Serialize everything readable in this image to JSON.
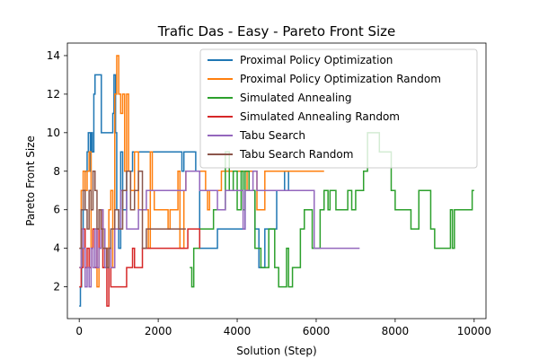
{
  "chart_data": {
    "type": "line",
    "title": "Trafic Das - Easy - Pareto Front Size",
    "xlabel": "Solution (Step)",
    "ylabel": "Pareto Front Size",
    "xlim": [
      -300,
      10300
    ],
    "ylim": [
      0.35,
      14.65
    ],
    "xticks": [
      0,
      2000,
      4000,
      6000,
      8000,
      10000
    ],
    "yticks": [
      2,
      4,
      6,
      8,
      10,
      12,
      14
    ],
    "grid": false,
    "legend_position": "top-right",
    "series": [
      {
        "name": "Proximal Policy Optimization",
        "color": "#1f77b4",
        "points": [
          [
            0,
            1
          ],
          [
            30,
            2
          ],
          [
            60,
            4
          ],
          [
            100,
            6
          ],
          [
            150,
            8
          ],
          [
            200,
            9
          ],
          [
            230,
            10
          ],
          [
            280,
            8
          ],
          [
            300,
            10
          ],
          [
            330,
            9
          ],
          [
            370,
            12
          ],
          [
            400,
            13
          ],
          [
            560,
            10
          ],
          [
            850,
            11
          ],
          [
            880,
            13
          ],
          [
            920,
            10
          ],
          [
            950,
            6
          ],
          [
            1000,
            4
          ],
          [
            1050,
            9
          ],
          [
            1100,
            6
          ],
          [
            1200,
            8
          ],
          [
            1350,
            9
          ],
          [
            2600,
            8
          ],
          [
            2650,
            9
          ],
          [
            2950,
            8
          ],
          [
            3050,
            4
          ],
          [
            3500,
            5
          ],
          [
            4200,
            7
          ],
          [
            4450,
            5
          ],
          [
            4550,
            3
          ],
          [
            4700,
            5
          ],
          [
            5000,
            7
          ],
          [
            5200,
            8
          ],
          [
            5300,
            7
          ]
        ]
      },
      {
        "name": "Proximal Policy Optimization Random",
        "color": "#ff7f0e",
        "points": [
          [
            0,
            3
          ],
          [
            50,
            7
          ],
          [
            100,
            8
          ],
          [
            150,
            7
          ],
          [
            200,
            8
          ],
          [
            250,
            9
          ],
          [
            300,
            4
          ],
          [
            350,
            5
          ],
          [
            400,
            3
          ],
          [
            450,
            2
          ],
          [
            500,
            4
          ],
          [
            550,
            6
          ],
          [
            600,
            3
          ],
          [
            700,
            4
          ],
          [
            750,
            6
          ],
          [
            800,
            7
          ],
          [
            850,
            3
          ],
          [
            900,
            12
          ],
          [
            950,
            14
          ],
          [
            1000,
            12
          ],
          [
            1050,
            11
          ],
          [
            1100,
            12
          ],
          [
            1150,
            8
          ],
          [
            1200,
            12
          ],
          [
            1250,
            8
          ],
          [
            1300,
            7
          ],
          [
            1400,
            9
          ],
          [
            1500,
            6
          ],
          [
            1750,
            4
          ],
          [
            1800,
            9
          ],
          [
            1850,
            7
          ],
          [
            1900,
            6
          ],
          [
            2250,
            5
          ],
          [
            2300,
            6
          ],
          [
            2500,
            8
          ],
          [
            2550,
            4
          ],
          [
            2650,
            7
          ],
          [
            2700,
            8
          ],
          [
            3200,
            7
          ],
          [
            3250,
            6
          ],
          [
            3300,
            7
          ],
          [
            3600,
            8
          ],
          [
            4250,
            7
          ],
          [
            4300,
            8
          ],
          [
            4500,
            6
          ],
          [
            4700,
            8
          ],
          [
            6200,
            8
          ]
        ]
      },
      {
        "name": "Simulated Annealing",
        "color": "#2ca02c",
        "points": [
          [
            2800,
            3
          ],
          [
            2850,
            2
          ],
          [
            2900,
            4
          ],
          [
            3000,
            4
          ],
          [
            3050,
            5
          ],
          [
            3400,
            6
          ],
          [
            3700,
            9
          ],
          [
            3800,
            7
          ],
          [
            3900,
            8
          ],
          [
            4000,
            6
          ],
          [
            4100,
            8
          ],
          [
            4150,
            6
          ],
          [
            4200,
            8
          ],
          [
            4300,
            7
          ],
          [
            4450,
            4
          ],
          [
            4600,
            3
          ],
          [
            4800,
            5
          ],
          [
            4950,
            3
          ],
          [
            5050,
            2
          ],
          [
            5250,
            4
          ],
          [
            5300,
            2
          ],
          [
            5400,
            3
          ],
          [
            5600,
            5
          ],
          [
            5700,
            6
          ],
          [
            5800,
            6
          ],
          [
            5900,
            4
          ],
          [
            6100,
            6
          ],
          [
            6200,
            7
          ],
          [
            6300,
            6
          ],
          [
            6350,
            7
          ],
          [
            6500,
            6
          ],
          [
            6800,
            7
          ],
          [
            6900,
            6
          ],
          [
            7000,
            7
          ],
          [
            7200,
            8
          ],
          [
            7300,
            10
          ],
          [
            7600,
            9
          ],
          [
            7900,
            7
          ],
          [
            8000,
            6
          ],
          [
            8200,
            6
          ],
          [
            8400,
            5
          ],
          [
            8600,
            7
          ],
          [
            8900,
            5
          ],
          [
            9000,
            4
          ],
          [
            9400,
            6
          ],
          [
            9450,
            4
          ],
          [
            9500,
            6
          ],
          [
            9700,
            6
          ],
          [
            9950,
            7
          ],
          [
            10000,
            7
          ]
        ]
      },
      {
        "name": "Simulated Annealing Random",
        "color": "#d62728",
        "points": [
          [
            0,
            2
          ],
          [
            50,
            3
          ],
          [
            100,
            5
          ],
          [
            150,
            3
          ],
          [
            200,
            4
          ],
          [
            250,
            3
          ],
          [
            300,
            4
          ],
          [
            350,
            5
          ],
          [
            400,
            3
          ],
          [
            450,
            5
          ],
          [
            500,
            4
          ],
          [
            550,
            6
          ],
          [
            600,
            3
          ],
          [
            650,
            4
          ],
          [
            700,
            1
          ],
          [
            750,
            4
          ],
          [
            800,
            2
          ],
          [
            1200,
            3
          ],
          [
            1300,
            3
          ],
          [
            1350,
            4
          ],
          [
            1400,
            3
          ],
          [
            1600,
            4
          ],
          [
            2000,
            4
          ],
          [
            2500,
            4
          ],
          [
            2700,
            4
          ],
          [
            2750,
            5
          ],
          [
            3000,
            5
          ],
          [
            3050,
            4
          ]
        ]
      },
      {
        "name": "Tabu Search",
        "color": "#9467bd",
        "points": [
          [
            0,
            3
          ],
          [
            50,
            5
          ],
          [
            100,
            4
          ],
          [
            150,
            2
          ],
          [
            200,
            3
          ],
          [
            250,
            2
          ],
          [
            300,
            4
          ],
          [
            350,
            3
          ],
          [
            400,
            5
          ],
          [
            450,
            3
          ],
          [
            500,
            4
          ],
          [
            550,
            6
          ],
          [
            600,
            5
          ],
          [
            650,
            3
          ],
          [
            750,
            4
          ],
          [
            800,
            3
          ],
          [
            900,
            5
          ],
          [
            1000,
            5
          ],
          [
            1050,
            7
          ],
          [
            1100,
            7
          ],
          [
            1200,
            5
          ],
          [
            1400,
            5
          ],
          [
            1500,
            6
          ],
          [
            1600,
            6
          ],
          [
            1700,
            7
          ],
          [
            2000,
            7
          ],
          [
            2500,
            7
          ],
          [
            2700,
            8
          ],
          [
            3050,
            7
          ],
          [
            3500,
            6
          ],
          [
            3700,
            7
          ],
          [
            4100,
            7
          ],
          [
            4150,
            5
          ],
          [
            4200,
            7
          ],
          [
            4400,
            8
          ],
          [
            4500,
            7
          ],
          [
            5000,
            7
          ],
          [
            5500,
            7
          ],
          [
            5800,
            7
          ],
          [
            5950,
            4
          ],
          [
            6500,
            4
          ],
          [
            7100,
            4
          ]
        ]
      },
      {
        "name": "Tabu Search Random",
        "color": "#8c564b",
        "points": [
          [
            0,
            4
          ],
          [
            50,
            6
          ],
          [
            100,
            7
          ],
          [
            150,
            6
          ],
          [
            200,
            5
          ],
          [
            250,
            7
          ],
          [
            300,
            6
          ],
          [
            350,
            8
          ],
          [
            400,
            7
          ],
          [
            450,
            5
          ],
          [
            500,
            6
          ],
          [
            550,
            5
          ],
          [
            600,
            4
          ],
          [
            700,
            3
          ],
          [
            750,
            4
          ],
          [
            800,
            5
          ],
          [
            900,
            6
          ],
          [
            1000,
            5
          ],
          [
            1100,
            7
          ],
          [
            1200,
            8
          ],
          [
            1300,
            6
          ],
          [
            1400,
            7
          ],
          [
            1500,
            8
          ],
          [
            1600,
            4
          ],
          [
            1700,
            5
          ],
          [
            2000,
            5
          ],
          [
            2300,
            5
          ],
          [
            2600,
            5
          ],
          [
            2700,
            5
          ]
        ]
      }
    ]
  }
}
